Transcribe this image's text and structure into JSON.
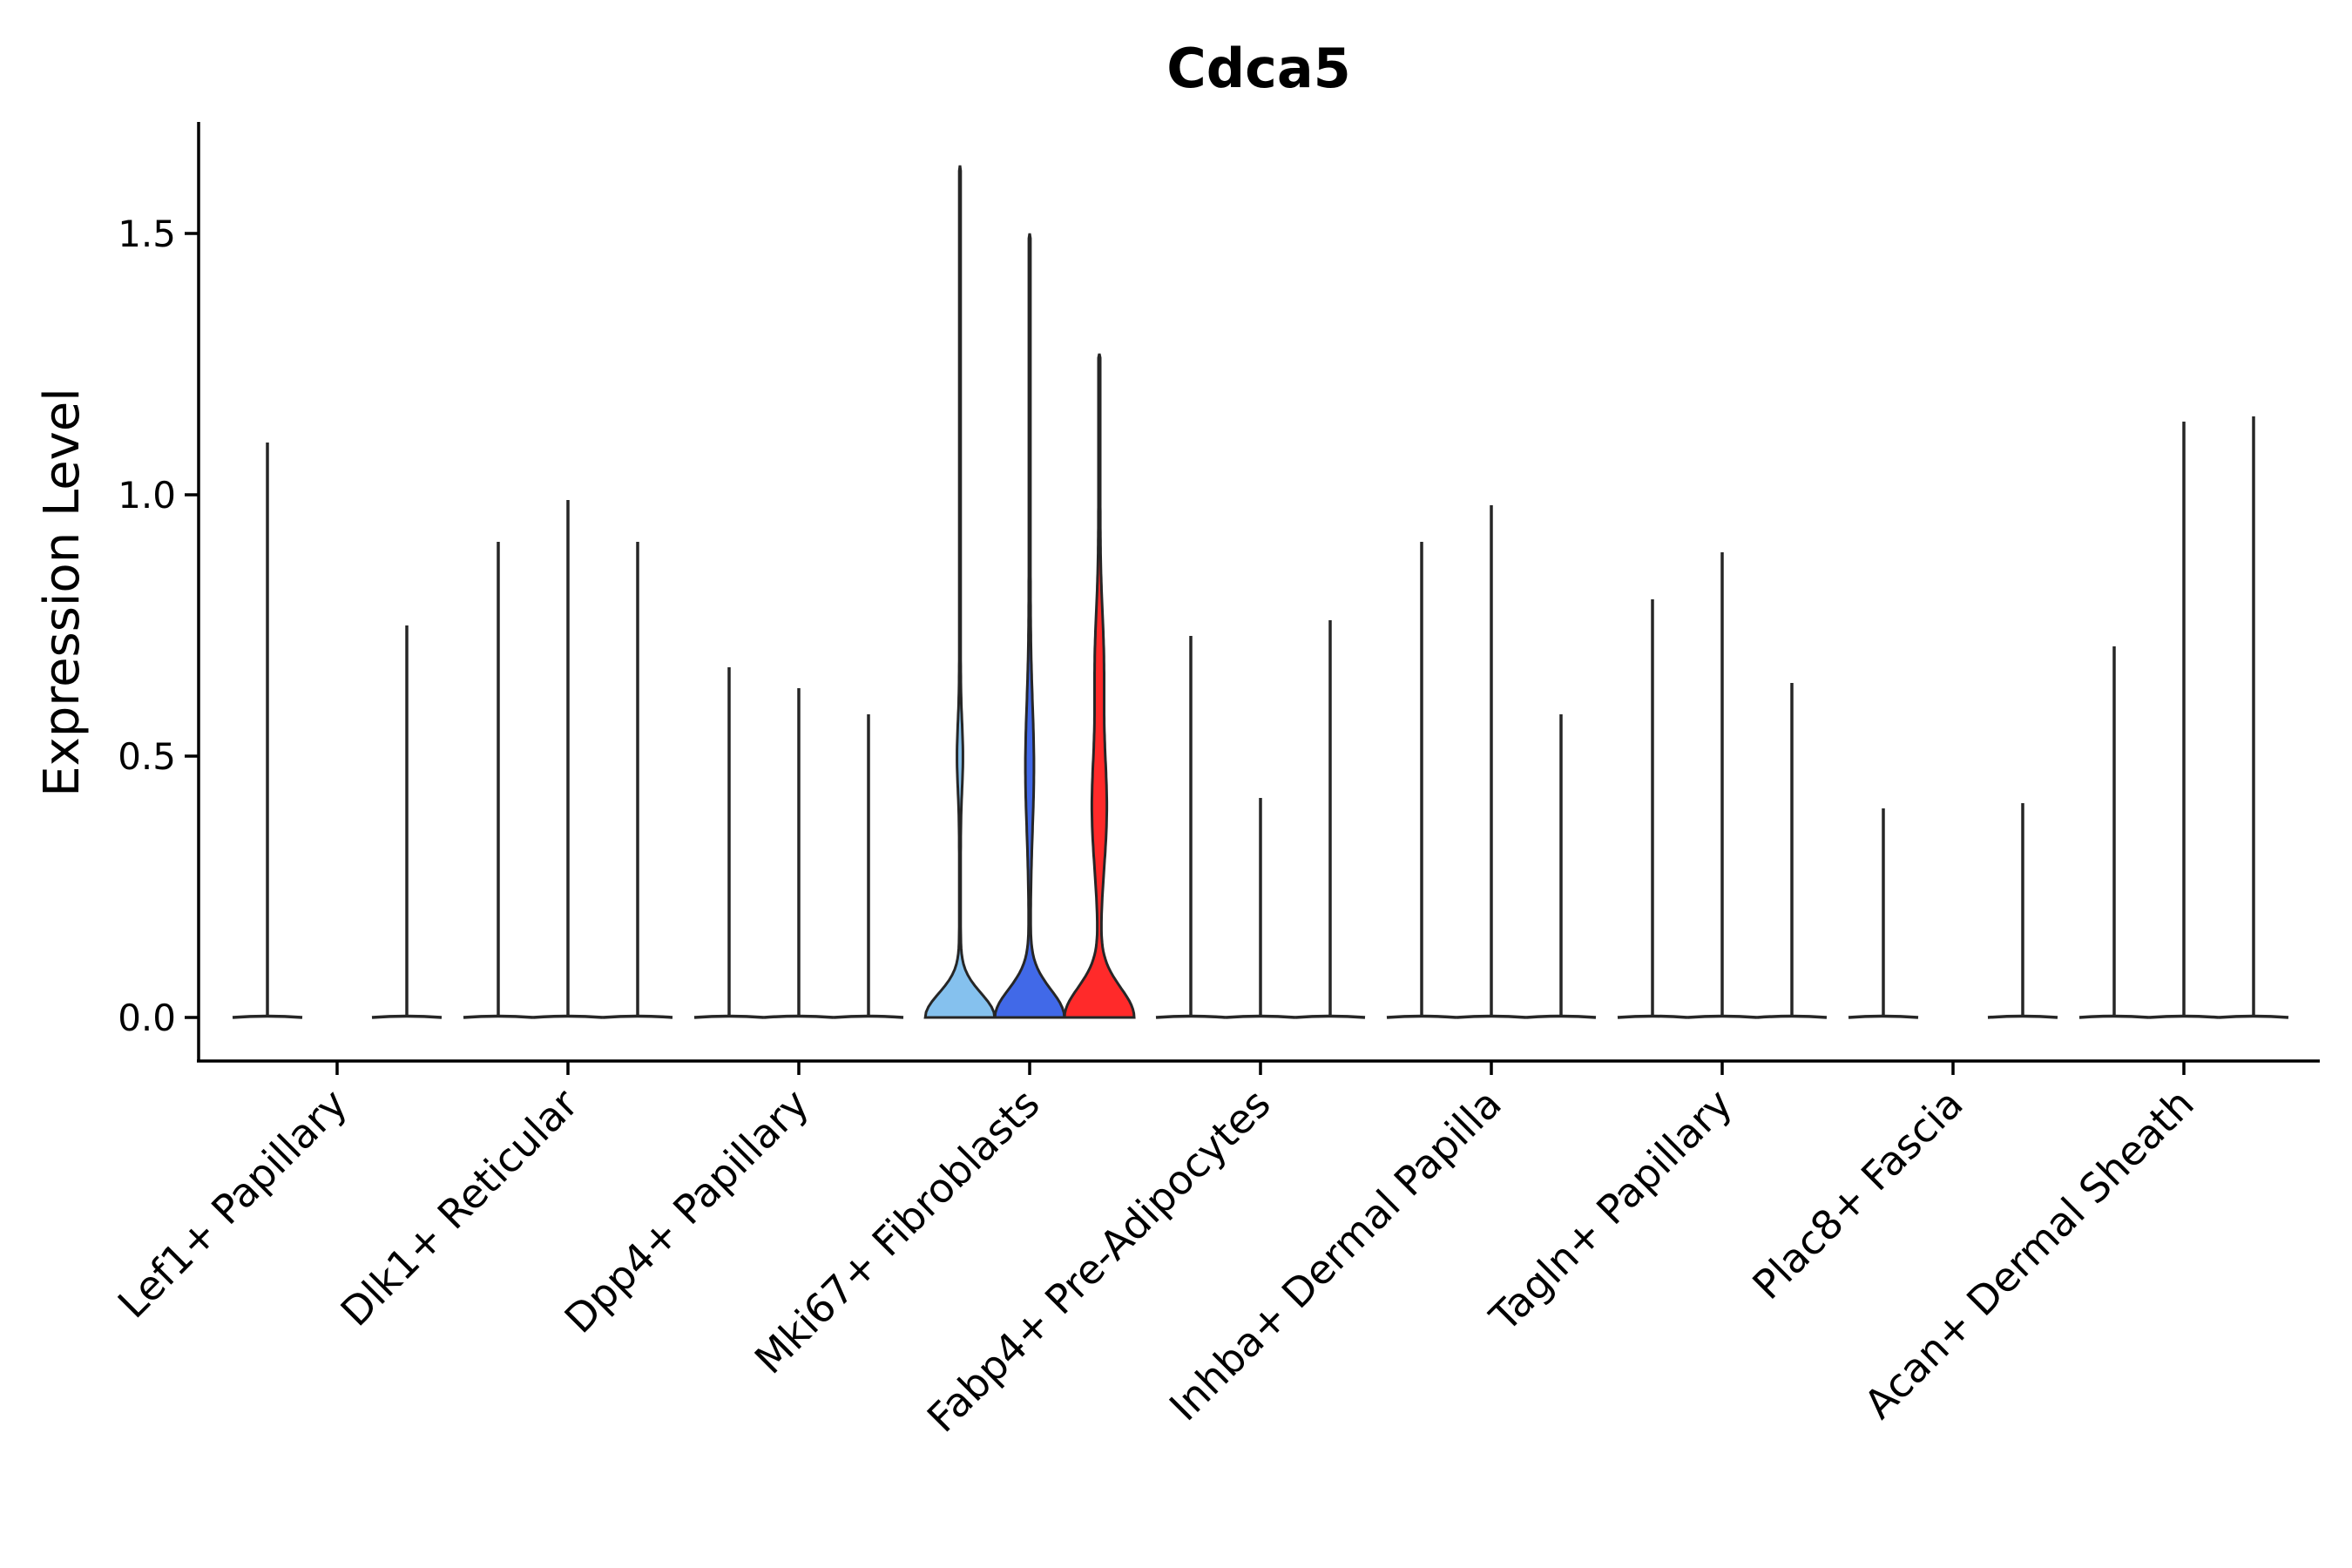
{
  "chart_data": {
    "type": "violin",
    "title": "Cdca5",
    "xlabel": "",
    "ylabel": "Expression Level",
    "ylim": [
      -0.08,
      1.72
    ],
    "yticks": [
      0.0,
      0.5,
      1.0,
      1.5
    ],
    "ytick_labels": [
      "0.0",
      "0.5",
      "1.0",
      "1.5"
    ],
    "grid": false,
    "legend": "none",
    "categories": [
      "Lef1+ Papillary",
      "Dlk1+ Reticular",
      "Dpp4+ Papillary",
      "Mki67+ Fibroblasts",
      "Fabp4+ Pre-Adipocytes",
      "Inhba+ Dermal Papilla",
      "Tagln+ Papillary",
      "Plac8+ Fascia",
      "Acan+ Dermal Sheath"
    ],
    "series": [
      {
        "name": "Lef1+ Papillary sample 1",
        "category": 0,
        "slot": 0,
        "max": 1.1,
        "shape": "spike",
        "color": "#262626"
      },
      {
        "name": "Lef1+ Papillary sample 3",
        "category": 0,
        "slot": 2,
        "max": 0.75,
        "shape": "spike",
        "color": "#262626"
      },
      {
        "name": "Dlk1+ Reticular sample 1",
        "category": 1,
        "slot": 0,
        "max": 0.91,
        "shape": "spike",
        "color": "#262626"
      },
      {
        "name": "Dlk1+ Reticular sample 2",
        "category": 1,
        "slot": 1,
        "max": 0.99,
        "shape": "spike",
        "color": "#262626"
      },
      {
        "name": "Dlk1+ Reticular sample 3",
        "category": 1,
        "slot": 2,
        "max": 0.91,
        "shape": "spike",
        "color": "#262626"
      },
      {
        "name": "Dpp4+ Papillary sample 1",
        "category": 2,
        "slot": 0,
        "max": 0.67,
        "shape": "spike",
        "color": "#262626"
      },
      {
        "name": "Dpp4+ Papillary sample 2",
        "category": 2,
        "slot": 1,
        "max": 0.63,
        "shape": "spike",
        "color": "#262626"
      },
      {
        "name": "Dpp4+ Papillary sample 3",
        "category": 2,
        "slot": 2,
        "max": 0.58,
        "shape": "spike",
        "color": "#262626"
      },
      {
        "name": "Mki67+ Fibroblasts sample 1",
        "category": 3,
        "slot": 0,
        "max": 1.63,
        "shape": "violin-a",
        "color": "#85C1EE"
      },
      {
        "name": "Mki67+ Fibroblasts sample 2",
        "category": 3,
        "slot": 1,
        "max": 1.5,
        "shape": "violin-b",
        "color": "#4169E8"
      },
      {
        "name": "Mki67+ Fibroblasts sample 3",
        "category": 3,
        "slot": 2,
        "max": 1.27,
        "shape": "violin-c",
        "color": "#FF2A2A"
      },
      {
        "name": "Fabp4+ Pre-Adipocytes sample 1",
        "category": 4,
        "slot": 0,
        "max": 0.73,
        "shape": "spike",
        "color": "#262626"
      },
      {
        "name": "Fabp4+ Pre-Adipocytes sample 2",
        "category": 4,
        "slot": 1,
        "max": 0.42,
        "shape": "spike",
        "color": "#262626"
      },
      {
        "name": "Fabp4+ Pre-Adipocytes sample 3",
        "category": 4,
        "slot": 2,
        "max": 0.76,
        "shape": "spike",
        "color": "#262626"
      },
      {
        "name": "Inhba+ Dermal Papilla sample 1",
        "category": 5,
        "slot": 0,
        "max": 0.91,
        "shape": "spike",
        "color": "#262626"
      },
      {
        "name": "Inhba+ Dermal Papilla sample 2",
        "category": 5,
        "slot": 1,
        "max": 0.98,
        "shape": "spike",
        "color": "#262626"
      },
      {
        "name": "Inhba+ Dermal Papilla sample 3",
        "category": 5,
        "slot": 2,
        "max": 0.58,
        "shape": "spike",
        "color": "#262626"
      },
      {
        "name": "Tagln+ Papillary sample 1",
        "category": 6,
        "slot": 0,
        "max": 0.8,
        "shape": "spike",
        "color": "#262626"
      },
      {
        "name": "Tagln+ Papillary sample 2",
        "category": 6,
        "slot": 1,
        "max": 0.89,
        "shape": "spike",
        "color": "#262626"
      },
      {
        "name": "Tagln+ Papillary sample 3",
        "category": 6,
        "slot": 2,
        "max": 0.64,
        "shape": "spike",
        "color": "#262626"
      },
      {
        "name": "Plac8+ Fascia sample 1",
        "category": 7,
        "slot": 0,
        "max": 0.4,
        "shape": "spike",
        "color": "#262626"
      },
      {
        "name": "Plac8+ Fascia sample 3",
        "category": 7,
        "slot": 2,
        "max": 0.41,
        "shape": "spike",
        "color": "#262626"
      },
      {
        "name": "Acan+ Dermal Sheath sample 1",
        "category": 8,
        "slot": 0,
        "max": 0.71,
        "shape": "spike",
        "color": "#262626"
      },
      {
        "name": "Acan+ Dermal Sheath sample 2",
        "category": 8,
        "slot": 1,
        "max": 1.14,
        "shape": "spike",
        "color": "#262626"
      },
      {
        "name": "Acan+ Dermal Sheath sample 3",
        "category": 8,
        "slot": 2,
        "max": 1.15,
        "shape": "spike",
        "color": "#262626"
      }
    ]
  }
}
